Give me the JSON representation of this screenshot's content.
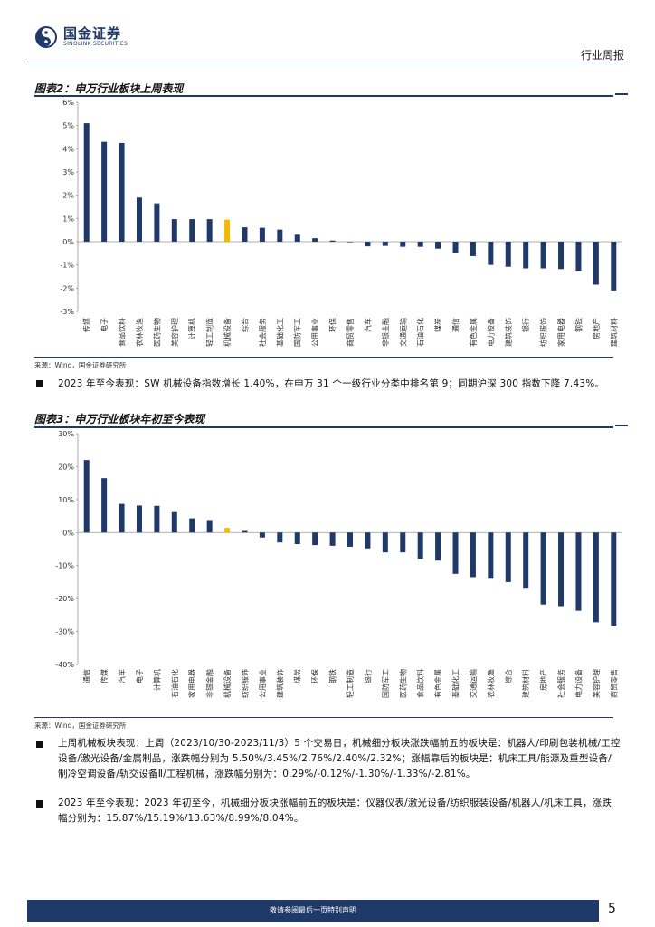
{
  "header": {
    "logo_cn": "国金证券",
    "logo_en": "SINOLINK SECURITIES",
    "report_type": "行业周报"
  },
  "figure2": {
    "title": "图表2：申万行业板块上周表现",
    "source": "来源：Wind，国金证券研究所"
  },
  "figure3": {
    "title": "图表3：申万行业板块年初至今表现",
    "source": "来源：Wind，国金证券研究所"
  },
  "colors": {
    "bar": "#1f3a68",
    "highlight": "#f5b800"
  },
  "paragraphs": {
    "p1": "2023 年至今表现：SW 机械设备指数增长 1.40%，在申万 31 个一级行业分类中排名第 9；同期沪深 300 指数下降 7.43%。",
    "p2": "上周机械板块表现：上周（2023/10/30-2023/11/3）5 个交易日，机械细分板块涨跌幅前五的板块是：机器人/印刷包装机械/工控设备/激光设备/金属制品，涨跌幅分别为 5.50%/3.45%/2.76%/2.40%/2.32%；涨幅靠后的板块是：机床工具/能源及重型设备/制冷空调设备/轨交设备Ⅱ/工程机械，涨跌幅分别为：0.29%/-0.12%/-1.30%/-1.33%/-2.81%。",
    "p3": "2023 年至今表现：2023 年初至今，机械细分板块涨幅前五的板块是：仪器仪表/激光设备/纺织服装设备/机器人/机床工具，涨跌幅分别为：15.87%/15.19%/13.63%/8.99%/8.04%。"
  },
  "footer": {
    "disclaimer": "敬请参阅最后一页特别声明",
    "page": "5"
  },
  "chart_data": [
    {
      "type": "bar",
      "title": "图表2：申万行业板块上周表现",
      "highlight": "机械设备",
      "categories": [
        "传媒",
        "电子",
        "食品饮料",
        "农林牧渔",
        "医药生物",
        "美容护理",
        "计算机",
        "轻工制造",
        "机械设备",
        "综合",
        "社会服务",
        "基础化工",
        "国防军工",
        "公用事业",
        "环保",
        "商贸零售",
        "汽车",
        "非银金融",
        "交通运输",
        "石油石化",
        "煤炭",
        "通信",
        "有色金属",
        "电力设备",
        "建筑装饰",
        "银行",
        "纺织服饰",
        "家用电器",
        "钢铁",
        "房地产",
        "建筑材料"
      ],
      "values": [
        5.1,
        4.3,
        4.25,
        1.9,
        1.65,
        0.97,
        0.97,
        0.97,
        0.95,
        0.62,
        0.6,
        0.52,
        0.3,
        0.15,
        0.05,
        0.0,
        -0.2,
        -0.18,
        -0.22,
        -0.22,
        -0.3,
        -0.5,
        -0.62,
        -1.0,
        -1.08,
        -1.15,
        -1.15,
        -1.18,
        -1.25,
        -1.85,
        -2.1
      ],
      "ylim": [
        -3,
        6
      ],
      "ticks": [
        "6%",
        "5%",
        "4%",
        "3%",
        "2%",
        "1%",
        "0%",
        "-1%",
        "-2%",
        "-3%"
      ]
    },
    {
      "type": "bar",
      "title": "图表3：申万行业板块年初至今表现",
      "highlight": "机械设备",
      "categories": [
        "通信",
        "传媒",
        "汽车",
        "电子",
        "计算机",
        "石油石化",
        "家用电器",
        "非银金融",
        "机械设备",
        "纺织服饰",
        "公用事业",
        "建筑装饰",
        "煤炭",
        "环保",
        "钢铁",
        "轻工制造",
        "银行",
        "国防军工",
        "医药生物",
        "食品饮料",
        "有色金属",
        "基础化工",
        "交通运输",
        "农林牧渔",
        "综合",
        "建筑材料",
        "房地产",
        "社会服务",
        "电力设备",
        "美容护理",
        "商贸零售"
      ],
      "values": [
        22,
        16.5,
        8.7,
        8.2,
        8.1,
        6.2,
        4.3,
        3.8,
        1.4,
        0.5,
        -1.5,
        -3,
        -3.5,
        -3.8,
        -4,
        -4.3,
        -4.8,
        -6,
        -6,
        -8,
        -8.5,
        -12.5,
        -13.5,
        -14,
        -15,
        -17,
        -21.8,
        -22.3,
        -23.7,
        -27.2,
        -28.3
      ],
      "ylim": [
        -40,
        30
      ],
      "ticks": [
        "30%",
        "20%",
        "10%",
        "0%",
        "-10%",
        "-20%",
        "-30%",
        "-40%"
      ]
    }
  ]
}
